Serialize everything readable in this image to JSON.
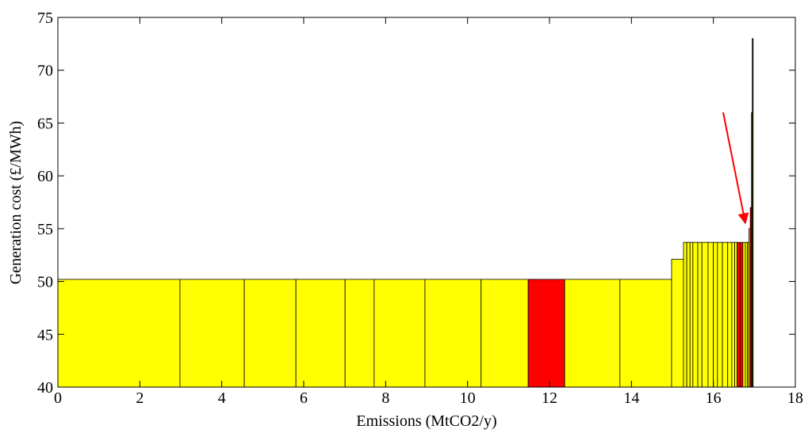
{
  "chart_data": {
    "type": "histogram",
    "xlabel": "Emissions (MtCO2/y)",
    "ylabel": "Generation cost (£/MWh)",
    "bins": [
      0,
      2.98,
      4.55,
      5.81,
      7.01,
      7.72,
      8.96,
      10.33,
      11.48,
      12.37,
      13.72,
      14.98,
      15.27,
      15.35,
      15.43,
      15.5,
      15.62,
      15.72,
      15.87,
      16.0,
      16.1,
      16.22,
      16.35,
      16.45,
      16.52,
      16.58,
      16.65,
      16.72,
      16.78,
      16.83,
      16.87,
      16.9,
      16.93,
      16.95,
      16.97
    ],
    "values": [
      50.2,
      50.2,
      50.2,
      50.2,
      50.2,
      50.2,
      50.2,
      50.2,
      50.2,
      50.2,
      50.2,
      52.1,
      53.7,
      53.7,
      53.7,
      53.7,
      53.7,
      53.7,
      53.7,
      53.7,
      53.7,
      53.7,
      53.7,
      53.7,
      53.7,
      53.7,
      53.7,
      53.7,
      53.7,
      53.7,
      55,
      57,
      66,
      73
    ],
    "colors": [
      "#ffff00",
      "#ffff00",
      "#ffff00",
      "#ffff00",
      "#ffff00",
      "#ffff00",
      "#ffff00",
      "#ffff00",
      "#ff0000",
      "#ffff00",
      "#ffff00",
      "#ffff00",
      "#ffff00",
      "#ffff00",
      "#ffff00",
      "#ffff00",
      "#ffff00",
      "#ffff00",
      "#ffff00",
      "#ffff00",
      "#ffff00",
      "#ffff00",
      "#ffff00",
      "#ffff00",
      "#ffff00",
      "#ff0000",
      "#ff0000",
      "#ffff00",
      "#ffff00",
      "#ffff00",
      "#ffff00",
      "#ff0000",
      "#ffff00",
      "#000000"
    ],
    "xlim": [
      0,
      18
    ],
    "xticks": [
      0,
      2,
      4,
      6,
      8,
      10,
      12,
      14,
      16,
      18
    ],
    "ylim": [
      40,
      75
    ],
    "yticks": [
      40,
      45,
      50,
      55,
      60,
      65,
      70,
      75
    ]
  }
}
